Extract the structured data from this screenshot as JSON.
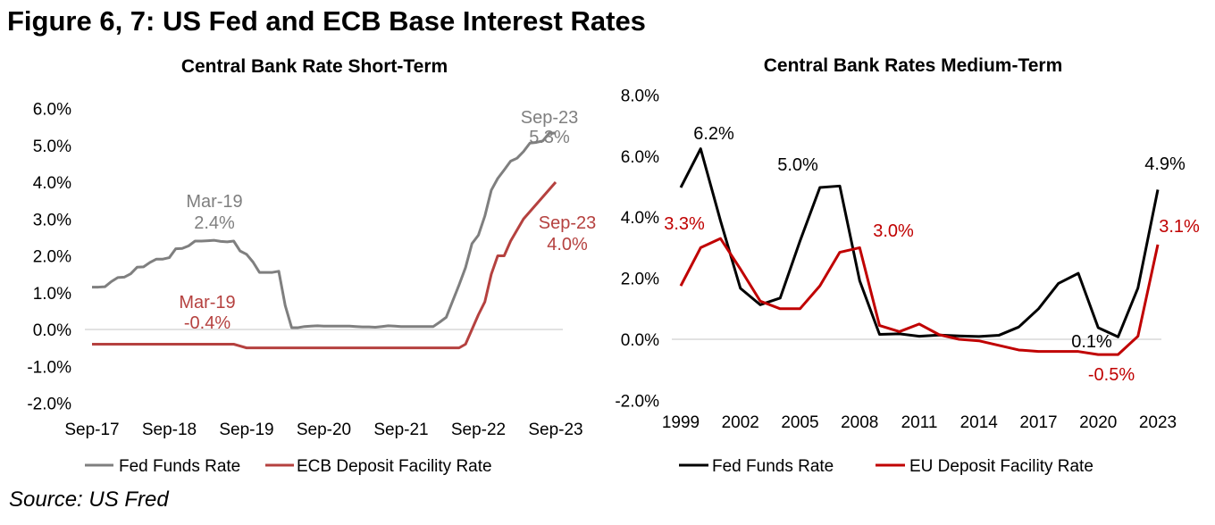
{
  "figure_title": "Figure 6, 7: US Fed and ECB Base Interest Rates",
  "source": "Source: US Fred",
  "colors": {
    "fed_left": "#7f7f7f",
    "ecb_left": "#b5413f",
    "fed_right": "#000000",
    "eu_right": "#c00000",
    "zero_line": "#d9d9d9"
  },
  "chart_data": [
    {
      "type": "line",
      "title": "Central Bank Rate Short-Term",
      "xlabel": "",
      "ylabel": "",
      "ylim": [
        -2,
        6
      ],
      "y_ticks": [
        "-2.0%",
        "-1.0%",
        "0.0%",
        "1.0%",
        "2.0%",
        "3.0%",
        "4.0%",
        "5.0%",
        "6.0%"
      ],
      "x_start": "Sep-17",
      "x_frequency": "monthly",
      "x_ticks": [
        "Sep-17",
        "Sep-18",
        "Sep-19",
        "Sep-20",
        "Sep-21",
        "Sep-22",
        "Sep-23"
      ],
      "legend_position": "bottom",
      "series": [
        {
          "name": "Fed Funds Rate",
          "values": [
            1.15,
            1.15,
            1.16,
            1.3,
            1.41,
            1.42,
            1.51,
            1.69,
            1.7,
            1.82,
            1.91,
            1.91,
            1.95,
            2.19,
            2.2,
            2.27,
            2.4,
            2.4,
            2.41,
            2.42,
            2.39,
            2.38,
            2.4,
            2.13,
            2.04,
            1.83,
            1.55,
            1.55,
            1.55,
            1.58,
            0.65,
            0.05,
            0.05,
            0.08,
            0.09,
            0.1,
            0.09,
            0.09,
            0.09,
            0.09,
            0.09,
            0.08,
            0.07,
            0.07,
            0.06,
            0.08,
            0.1,
            0.09,
            0.08,
            0.08,
            0.08,
            0.08,
            0.08,
            0.08,
            0.2,
            0.33,
            0.77,
            1.21,
            1.68,
            2.33,
            2.56,
            3.08,
            3.78,
            4.1,
            4.33,
            4.57,
            4.65,
            4.83,
            5.06,
            5.08,
            5.12,
            5.33,
            5.33
          ]
        },
        {
          "name": "ECB Deposit Facility Rate",
          "values": [
            -0.4,
            -0.4,
            -0.4,
            -0.4,
            -0.4,
            -0.4,
            -0.4,
            -0.4,
            -0.4,
            -0.4,
            -0.4,
            -0.4,
            -0.4,
            -0.4,
            -0.4,
            -0.4,
            -0.4,
            -0.4,
            -0.4,
            -0.4,
            -0.4,
            -0.4,
            -0.4,
            -0.45,
            -0.5,
            -0.5,
            -0.5,
            -0.5,
            -0.5,
            -0.5,
            -0.5,
            -0.5,
            -0.5,
            -0.5,
            -0.5,
            -0.5,
            -0.5,
            -0.5,
            -0.5,
            -0.5,
            -0.5,
            -0.5,
            -0.5,
            -0.5,
            -0.5,
            -0.5,
            -0.5,
            -0.5,
            -0.5,
            -0.5,
            -0.5,
            -0.5,
            -0.5,
            -0.5,
            -0.5,
            -0.5,
            -0.5,
            -0.5,
            -0.4,
            0.0,
            0.4,
            0.75,
            1.5,
            2.0,
            2.0,
            2.4,
            2.7,
            3.0,
            3.2,
            3.4,
            3.6,
            3.8,
            4.0
          ]
        }
      ],
      "annotations": [
        {
          "lines": [
            "Sep-23",
            "5.3%"
          ],
          "series": 0
        },
        {
          "lines": [
            "Mar-19",
            "2.4%"
          ],
          "series": 0
        },
        {
          "lines": [
            "Sep-23",
            "4.0%"
          ],
          "series": 1
        },
        {
          "lines": [
            "Mar-19",
            "-0.4%"
          ],
          "series": 1
        }
      ]
    },
    {
      "type": "line",
      "title": "Central Bank Rates Medium-Term",
      "xlabel": "",
      "ylabel": "",
      "ylim": [
        -2,
        8
      ],
      "y_ticks": [
        "-2.0%",
        "0.0%",
        "2.0%",
        "4.0%",
        "6.0%",
        "8.0%"
      ],
      "x": [
        1999,
        2000,
        2001,
        2002,
        2003,
        2004,
        2005,
        2006,
        2007,
        2008,
        2009,
        2010,
        2011,
        2012,
        2013,
        2014,
        2015,
        2016,
        2017,
        2018,
        2019,
        2020,
        2021,
        2022,
        2023
      ],
      "x_ticks": [
        "1999",
        "2002",
        "2005",
        "2008",
        "2011",
        "2014",
        "2017",
        "2020",
        "2023"
      ],
      "legend_position": "bottom",
      "series": [
        {
          "name": "Fed Funds Rate",
          "values": [
            4.97,
            6.24,
            3.88,
            1.67,
            1.13,
            1.35,
            3.22,
            4.97,
            5.02,
            1.92,
            0.16,
            0.18,
            0.1,
            0.14,
            0.11,
            0.09,
            0.13,
            0.4,
            1.0,
            1.83,
            2.16,
            0.38,
            0.08,
            1.68,
            4.9
          ]
        },
        {
          "name": "EU Deposit Facility Rate",
          "values": [
            1.75,
            3.0,
            3.3,
            2.3,
            1.25,
            1.0,
            1.0,
            1.75,
            2.85,
            3.0,
            0.45,
            0.25,
            0.5,
            0.15,
            0.0,
            -0.05,
            -0.2,
            -0.35,
            -0.4,
            -0.4,
            -0.4,
            -0.5,
            -0.5,
            0.1,
            3.1
          ]
        }
      ],
      "annotations": [
        {
          "text": "6.2%",
          "series": 0
        },
        {
          "text": "5.0%",
          "series": 0
        },
        {
          "text": "4.9%",
          "series": 0
        },
        {
          "text": "0.1%",
          "series": 0
        },
        {
          "text": "3.3%",
          "series": 1
        },
        {
          "text": "3.0%",
          "series": 1
        },
        {
          "text": "3.1%",
          "series": 1
        },
        {
          "text": "-0.5%",
          "series": 1
        }
      ]
    }
  ]
}
